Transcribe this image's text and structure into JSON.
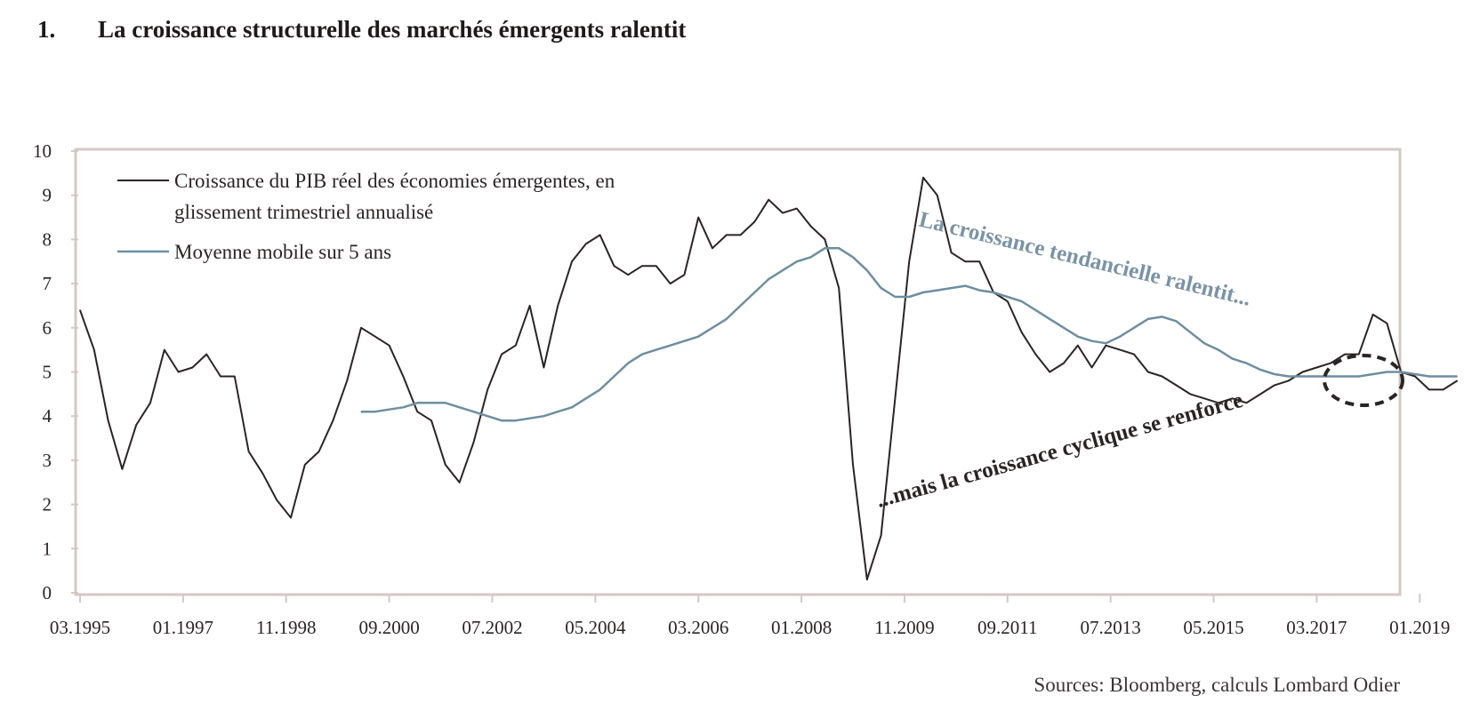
{
  "heading": {
    "number": "1.",
    "title": "La croissance structurelle des marchés émergents ralentit"
  },
  "source": "Sources: Bloomberg, calculs Lombard Odier",
  "colors": {
    "gdp": "#2b2424",
    "moving_average": "#6e8ea0",
    "frame": "#d4c8c4"
  },
  "chart_data": {
    "type": "line",
    "title": "La croissance structurelle des marchés émergents ralentit",
    "xlabel": "",
    "ylabel": "",
    "ylim": [
      0,
      10
    ],
    "yticks": [
      "0",
      "1",
      "2",
      "3",
      "4",
      "5",
      "6",
      "7",
      "8",
      "9",
      "10"
    ],
    "xticks": [
      "03.1995",
      "01.1997",
      "11.1998",
      "09.2000",
      "07.2002",
      "05.2004",
      "03.2006",
      "01.2008",
      "11.2009",
      "09.2011",
      "07.2013",
      "05.2015",
      "03.2017",
      "01.2019"
    ],
    "grid": false,
    "legend_position": "top-left",
    "series": [
      {
        "name": "Croissance du PIB réel des économies émergentes, en glissement trimestriel annualisé",
        "color": "#2b2424",
        "x": [
          "03.1995",
          "06.1995",
          "09.1995",
          "12.1995",
          "03.1996",
          "06.1996",
          "09.1996",
          "12.1996",
          "03.1997",
          "06.1997",
          "09.1997",
          "12.1997",
          "03.1998",
          "06.1998",
          "09.1998",
          "12.1998",
          "03.1999",
          "06.1999",
          "09.1999",
          "12.1999",
          "03.2000",
          "06.2000",
          "09.2000",
          "12.2000",
          "03.2001",
          "06.2001",
          "09.2001",
          "12.2001",
          "03.2002",
          "06.2002",
          "09.2002",
          "12.2002",
          "03.2003",
          "06.2003",
          "09.2003",
          "12.2003",
          "03.2004",
          "06.2004",
          "09.2004",
          "12.2004",
          "03.2005",
          "06.2005",
          "09.2005",
          "12.2005",
          "03.2006",
          "06.2006",
          "09.2006",
          "12.2006",
          "03.2007",
          "06.2007",
          "09.2007",
          "12.2007",
          "03.2008",
          "06.2008",
          "09.2008",
          "12.2008",
          "03.2009",
          "06.2009",
          "09.2009",
          "12.2009",
          "03.2010",
          "06.2010",
          "09.2010",
          "12.2010",
          "03.2011",
          "06.2011",
          "09.2011",
          "12.2011",
          "03.2012",
          "06.2012",
          "09.2012",
          "12.2012",
          "03.2013",
          "06.2013",
          "09.2013",
          "12.2013",
          "03.2014",
          "06.2014",
          "09.2014",
          "12.2014",
          "03.2015",
          "06.2015",
          "09.2015",
          "12.2015",
          "03.2016",
          "06.2016",
          "09.2016",
          "12.2016",
          "03.2017",
          "06.2017",
          "09.2017",
          "12.2017",
          "03.2018",
          "06.2018",
          "09.2018",
          "12.2018",
          "03.2019",
          "06.2019",
          "09.2019"
        ],
        "values": [
          6.4,
          5.5,
          3.9,
          2.8,
          3.8,
          4.3,
          5.5,
          5.0,
          5.1,
          5.4,
          4.9,
          4.9,
          3.2,
          2.7,
          2.1,
          1.7,
          2.9,
          3.2,
          3.9,
          4.8,
          6.0,
          5.8,
          5.6,
          4.9,
          4.1,
          3.9,
          2.9,
          2.5,
          3.4,
          4.6,
          5.4,
          5.6,
          6.5,
          5.1,
          6.5,
          7.5,
          7.9,
          8.1,
          7.4,
          7.2,
          7.4,
          7.4,
          7.0,
          7.2,
          8.5,
          7.8,
          8.1,
          8.1,
          8.4,
          8.9,
          8.6,
          8.7,
          8.3,
          8.0,
          6.9,
          2.9,
          0.3,
          1.3,
          4.4,
          7.5,
          9.4,
          9.0,
          7.7,
          7.5,
          7.5,
          6.8,
          6.6,
          5.9,
          5.4,
          5.0,
          5.2,
          5.6,
          5.1,
          5.6,
          5.5,
          5.4,
          5.0,
          4.9,
          4.7,
          4.5,
          4.4,
          4.3,
          4.4,
          4.3,
          4.5,
          4.7,
          4.8,
          5.0,
          5.1,
          5.2,
          5.4,
          5.4,
          6.3,
          6.1,
          5.0,
          4.9,
          4.6,
          4.6,
          4.8
        ]
      },
      {
        "name": "Moyenne mobile sur 5 ans",
        "color": "#6e8ea0",
        "x": [
          "03.2000",
          "06.2000",
          "09.2000",
          "12.2000",
          "03.2001",
          "06.2001",
          "09.2001",
          "12.2001",
          "03.2002",
          "06.2002",
          "09.2002",
          "12.2002",
          "03.2003",
          "06.2003",
          "09.2003",
          "12.2003",
          "03.2004",
          "06.2004",
          "09.2004",
          "12.2004",
          "03.2005",
          "06.2005",
          "09.2005",
          "12.2005",
          "03.2006",
          "06.2006",
          "09.2006",
          "12.2006",
          "03.2007",
          "06.2007",
          "09.2007",
          "12.2007",
          "03.2008",
          "06.2008",
          "09.2008",
          "12.2008",
          "03.2009",
          "06.2009",
          "09.2009",
          "12.2009",
          "03.2010",
          "06.2010",
          "09.2010",
          "12.2010",
          "03.2011",
          "06.2011",
          "09.2011",
          "12.2011",
          "03.2012",
          "06.2012",
          "09.2012",
          "12.2012",
          "03.2013",
          "06.2013",
          "09.2013",
          "12.2013",
          "03.2014",
          "06.2014",
          "09.2014",
          "12.2014",
          "03.2015",
          "06.2015",
          "09.2015",
          "12.2015",
          "03.2016",
          "06.2016",
          "09.2016",
          "12.2016",
          "03.2017",
          "06.2017",
          "09.2017",
          "12.2017",
          "03.2018",
          "06.2018",
          "09.2018",
          "12.2018",
          "03.2019",
          "06.2019",
          "09.2019"
        ],
        "values": [
          4.1,
          4.1,
          4.15,
          4.2,
          4.3,
          4.3,
          4.3,
          4.2,
          4.1,
          4.0,
          3.9,
          3.9,
          3.95,
          4.0,
          4.1,
          4.2,
          4.4,
          4.6,
          4.9,
          5.2,
          5.4,
          5.5,
          5.6,
          5.7,
          5.8,
          6.0,
          6.2,
          6.5,
          6.8,
          7.1,
          7.3,
          7.5,
          7.6,
          7.8,
          7.8,
          7.6,
          7.3,
          6.9,
          6.7,
          6.7,
          6.8,
          6.85,
          6.9,
          6.95,
          6.85,
          6.8,
          6.7,
          6.6,
          6.4,
          6.2,
          6.0,
          5.8,
          5.7,
          5.65,
          5.8,
          6.0,
          6.2,
          6.25,
          6.15,
          5.9,
          5.65,
          5.5,
          5.3,
          5.2,
          5.05,
          4.95,
          4.9,
          4.9,
          4.9,
          4.9,
          4.9,
          4.9,
          4.95,
          5.0,
          5.0,
          4.95,
          4.9,
          4.9,
          4.9
        ]
      }
    ],
    "annotations": [
      {
        "text": "La croissance tendancielle ralentit...",
        "color": "#7a93a6"
      },
      {
        "text": "...mais la croissance cyclique se renforce",
        "color": "#2b2424"
      }
    ]
  }
}
